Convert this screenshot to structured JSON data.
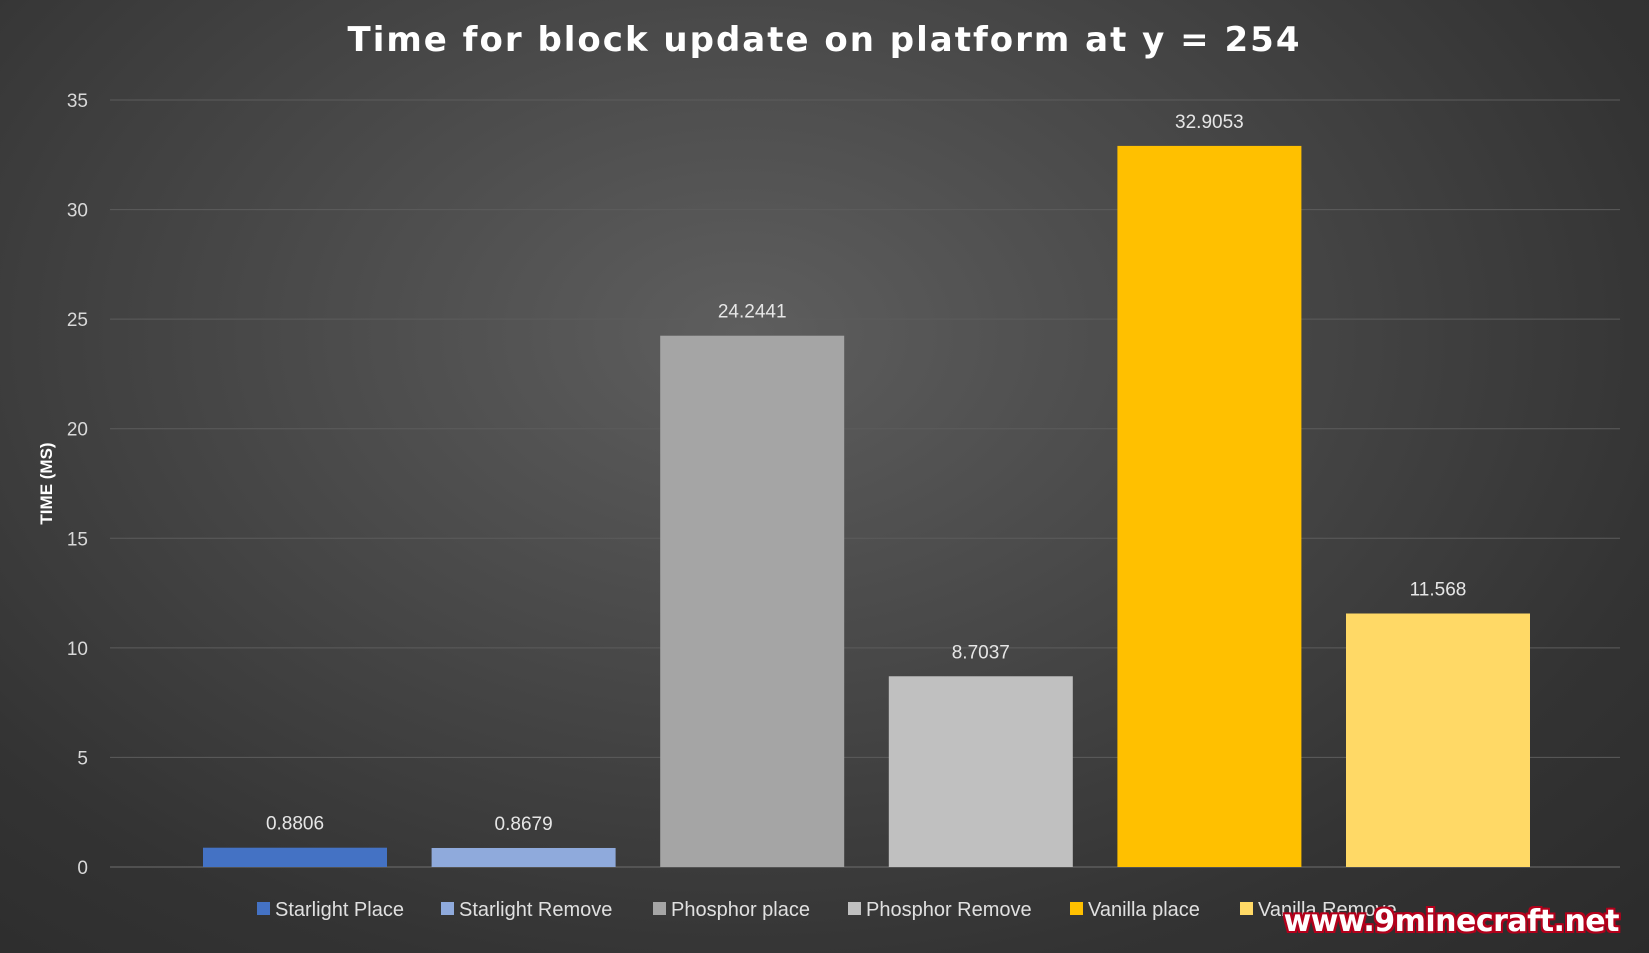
{
  "chart_data": {
    "type": "bar",
    "title": "Time for block update on platform at y = 254",
    "ylabel": "TIME (MS)",
    "xlabel": "",
    "ylim": [
      0,
      35
    ],
    "yticks": [
      0,
      5,
      10,
      15,
      20,
      25,
      30,
      35
    ],
    "grid": true,
    "legend": "bottom",
    "categories": [
      "Starlight Place",
      "Starlight Remove",
      "Phosphor place",
      "Phosphor Remove",
      "Vanilla place",
      "Vanilla Remove"
    ],
    "values": [
      0.8806,
      0.8679,
      24.2441,
      8.7037,
      32.9053,
      11.568
    ],
    "labels": [
      "0.8806",
      "0.8679",
      "24.2441",
      "8.7037",
      "32.9053",
      "11.568"
    ],
    "colors": [
      "#4472c4",
      "#8faadc",
      "#a5a5a5",
      "#c0c0c0",
      "#ffc000",
      "#ffd966"
    ]
  },
  "watermark": "www.9minecraft.net"
}
